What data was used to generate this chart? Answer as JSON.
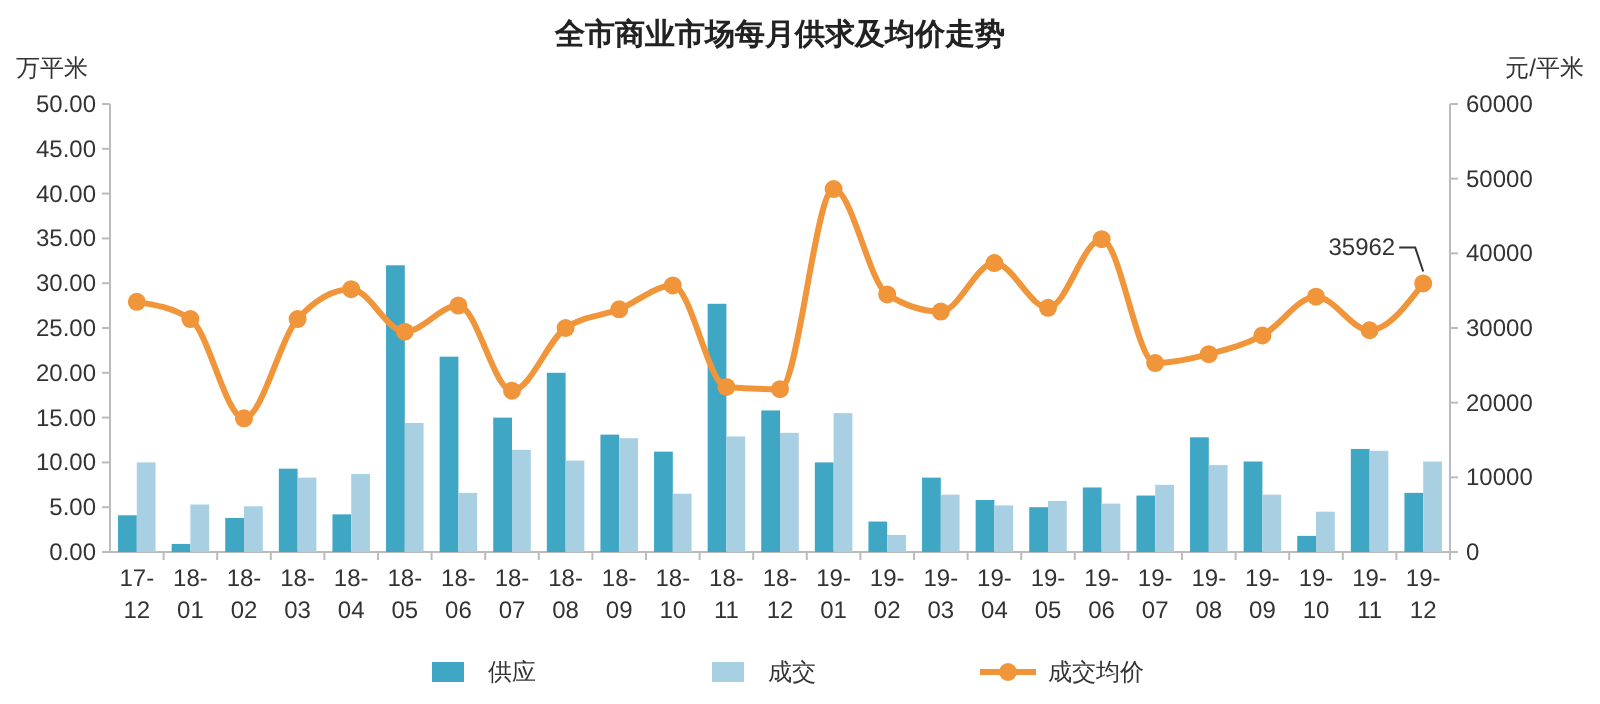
{
  "chart_data": {
    "type": "bar",
    "title": "全市商业市场每月供求及均价走势",
    "ylabel": "万平米",
    "y2label": "元/平米",
    "categories": [
      "17-12",
      "18-01",
      "18-02",
      "18-03",
      "18-04",
      "18-05",
      "18-06",
      "18-07",
      "18-08",
      "18-09",
      "18-10",
      "18-11",
      "18-12",
      "19-01",
      "19-02",
      "19-03",
      "19-04",
      "19-05",
      "19-06",
      "19-07",
      "19-08",
      "19-09",
      "19-10",
      "19-11",
      "19-12"
    ],
    "series": [
      {
        "name": "供应",
        "color": "#3fa6c4",
        "values": [
          4.1,
          0.9,
          3.8,
          9.3,
          4.2,
          32.0,
          21.8,
          15.0,
          20.0,
          13.1,
          11.2,
          27.7,
          15.8,
          10.0,
          3.4,
          8.3,
          5.8,
          5.0,
          7.2,
          6.3,
          12.8,
          10.1,
          1.8,
          11.5,
          6.6
        ]
      },
      {
        "name": "成交",
        "color": "#a8d0e2",
        "values": [
          10.0,
          5.3,
          5.1,
          8.3,
          8.7,
          14.4,
          6.6,
          11.4,
          10.2,
          12.7,
          6.5,
          12.9,
          13.3,
          15.5,
          1.9,
          6.4,
          5.2,
          5.7,
          5.4,
          7.5,
          9.7,
          6.4,
          4.5,
          11.3,
          10.1
        ]
      },
      {
        "name": "成交均价",
        "type": "line",
        "axis": "y2",
        "color": "#f0953a",
        "marker": "circle",
        "values": [
          33500,
          31200,
          17900,
          31200,
          35200,
          29500,
          33000,
          21600,
          30000,
          32500,
          35700,
          22100,
          21800,
          48600,
          34500,
          32200,
          38700,
          32700,
          41900,
          25300,
          26500,
          29000,
          34200,
          29700,
          35962
        ]
      }
    ],
    "ylim": [
      0,
      50
    ],
    "yticks": [
      {
        "value": 0,
        "label": "0.00"
      },
      {
        "value": 5,
        "label": "5.00"
      },
      {
        "value": 10,
        "label": "10.00"
      },
      {
        "value": 15,
        "label": "15.00"
      },
      {
        "value": 20,
        "label": "20.00"
      },
      {
        "value": 25,
        "label": "25.00"
      },
      {
        "value": 30,
        "label": "30.00"
      },
      {
        "value": 35,
        "label": "35.00"
      },
      {
        "value": 40,
        "label": "40.00"
      },
      {
        "value": 45,
        "label": "45.00"
      },
      {
        "value": 50,
        "label": "50.00"
      }
    ],
    "y2lim": [
      0,
      60000
    ],
    "y2ticks": [
      0,
      10000,
      20000,
      30000,
      40000,
      50000,
      60000
    ],
    "annotations": [
      "35962"
    ],
    "grid": false,
    "legend": "bottom"
  }
}
